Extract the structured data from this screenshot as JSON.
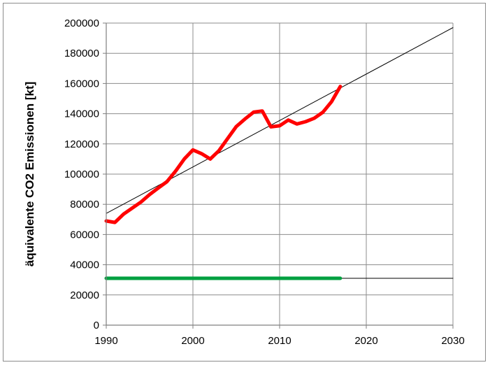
{
  "chart_data": {
    "type": "line",
    "title": "",
    "xlabel": "",
    "ylabel": "äquivalente CO2 Emissionen [kt]",
    "xlim": [
      1990,
      2030
    ],
    "ylim": [
      0,
      200000
    ],
    "xticks": [
      1990,
      2000,
      2010,
      2020,
      2030
    ],
    "yticks": [
      0,
      20000,
      40000,
      60000,
      80000,
      100000,
      120000,
      140000,
      160000,
      180000,
      200000
    ],
    "grid": true,
    "legend": "none",
    "series": [
      {
        "color": "#ff0000",
        "style": "thick",
        "x": [
          1990,
          1991,
          1992,
          1993,
          1994,
          1995,
          1996,
          1997,
          1998,
          1999,
          2000,
          2001,
          2002,
          2003,
          2004,
          2005,
          2006,
          2007,
          2008,
          2009,
          2010,
          2011,
          2012,
          2013,
          2014,
          2015,
          2016,
          2017
        ],
        "y": [
          69000,
          68000,
          73500,
          77500,
          81500,
          86500,
          90800,
          95000,
          102000,
          110000,
          116000,
          113500,
          110000,
          115500,
          123500,
          131500,
          136500,
          141000,
          141800,
          131300,
          132000,
          135800,
          133200,
          134700,
          137000,
          141000,
          148000,
          158000
        ]
      },
      {
        "color": "#000000",
        "style": "thin",
        "x": [
          1990,
          2030
        ],
        "y": [
          74000,
          197000
        ]
      },
      {
        "color": "#000000",
        "style": "thin",
        "x": [
          1990,
          2030
        ],
        "y": [
          31000,
          31000
        ]
      },
      {
        "color": "#00a040",
        "style": "thick",
        "x": [
          1990,
          2017
        ],
        "y": [
          31000,
          31000
        ]
      }
    ]
  }
}
